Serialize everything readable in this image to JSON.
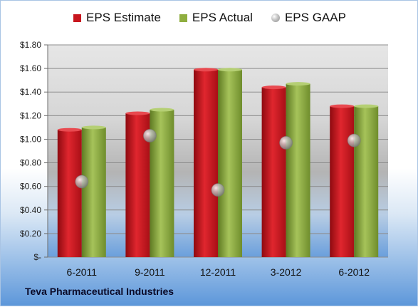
{
  "footer_text": "Teva Pharmaceutical Industries",
  "colors": {
    "estimate": "#c8161e",
    "actual": "#8fae3f",
    "gaap": "#9a9a9a"
  },
  "chart_data": {
    "type": "bar",
    "title": "",
    "xlabel": "",
    "ylabel": "",
    "categories": [
      "6-2011",
      "9-2011",
      "12-2011",
      "3-2012",
      "6-2012"
    ],
    "ylim": [
      0,
      1.8
    ],
    "yticks": [
      0,
      0.2,
      0.4,
      0.6,
      0.8,
      1.0,
      1.2,
      1.4,
      1.6,
      1.8
    ],
    "ytick_labels": [
      "$-",
      "$0.20",
      "$0.40",
      "$0.60",
      "$0.80",
      "$1.00",
      "$1.20",
      "$1.40",
      "$1.60",
      "$1.80"
    ],
    "grid": true,
    "legend_position": "top",
    "series": [
      {
        "name": "EPS Estimate",
        "type": "bar",
        "values": [
          1.08,
          1.22,
          1.59,
          1.44,
          1.28
        ]
      },
      {
        "name": "EPS Actual",
        "type": "bar",
        "values": [
          1.1,
          1.25,
          1.59,
          1.47,
          1.28
        ]
      },
      {
        "name": "EPS GAAP",
        "type": "scatter",
        "values": [
          0.64,
          1.03,
          0.57,
          0.97,
          0.99
        ]
      }
    ]
  }
}
